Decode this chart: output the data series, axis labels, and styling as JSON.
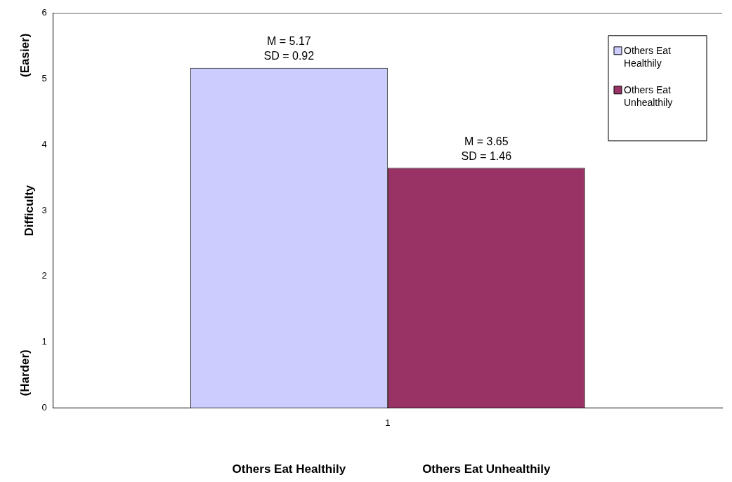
{
  "chart_data": {
    "type": "bar",
    "categories": [
      "1"
    ],
    "series": [
      {
        "name": "Others Eat Healthily",
        "color": "#ccccff",
        "values": [
          5.17
        ],
        "value_labels": [
          "M = 5.17\nSD = 0.92"
        ]
      },
      {
        "name": "Others Eat Unhealthily",
        "color": "#993366",
        "values": [
          3.65
        ],
        "value_labels": [
          "M = 3.65\nSD = 1.46"
        ]
      }
    ],
    "ylabel": "Difficulty",
    "ylim": [
      0,
      6
    ],
    "yticks": [
      0,
      1,
      2,
      3,
      4,
      5,
      6
    ],
    "grid": false,
    "legend": "top right",
    "annotations": [
      "(Easier)",
      "(Harder)",
      "Others Eat Healthily",
      "Others Eat Unhealthily"
    ]
  }
}
